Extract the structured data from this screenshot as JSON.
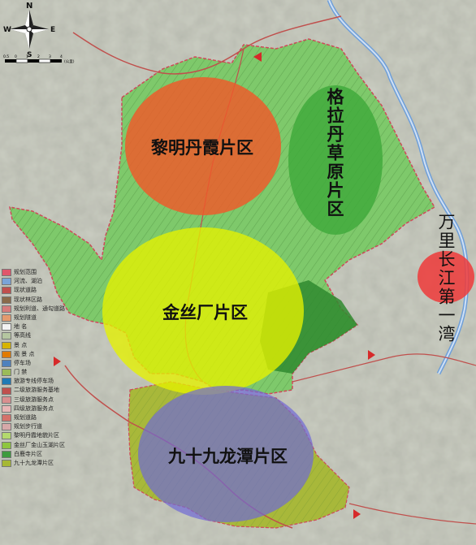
{
  "compass": {
    "north": "N",
    "south": "S",
    "east": "E",
    "west": "W"
  },
  "scale_bar": {
    "labels": [
      "0.5",
      "0",
      "1",
      "2",
      "3",
      "4"
    ],
    "unit": "(公里)"
  },
  "zones": {
    "liming": "黎明丹霞片区",
    "gela": "格拉丹草原片区",
    "jinsi": "金丝厂片区",
    "jiushijiu": "九十九龙潭片区",
    "wanli": "万里长江第一湾"
  },
  "legend": {
    "items": [
      {
        "label": "规划范围",
        "color": "#e0566b"
      },
      {
        "label": "河流、湖泊",
        "color": "#7aa4d8"
      },
      {
        "label": "现状道路",
        "color": "#c0504d"
      },
      {
        "label": "现状林区路",
        "color": "#8a6b4a"
      },
      {
        "label": "规划利道、通勾道路",
        "color": "#d67b7b"
      },
      {
        "label": "规划隧道",
        "color": "#e39a6e"
      },
      {
        "label": "地 名",
        "color": "#f2f2f2"
      },
      {
        "label": "等高线",
        "color": "#b5c6a0"
      },
      {
        "label": "景 点",
        "color": "#d6b400"
      },
      {
        "label": "观 景 点",
        "color": "#e07b00"
      },
      {
        "label": "停车场",
        "color": "#4f81bd"
      },
      {
        "label": "门 禁",
        "color": "#9bbb59"
      },
      {
        "label": "旅游专线停车场",
        "color": "#1f7ab5"
      },
      {
        "label": "二级旅游服务基地",
        "color": "#c0504d"
      },
      {
        "label": "三级旅游服务点",
        "color": "#d98f8f"
      },
      {
        "label": "四级旅游服务点",
        "color": "#e8b5b5"
      },
      {
        "label": "规划道路",
        "color": "#d4716a"
      },
      {
        "label": "规划步行道",
        "color": "#d6a8a8"
      },
      {
        "label": "黎明丹霞地貌片区",
        "color": "#b3d96d"
      },
      {
        "label": "金丝厂金山玉湖片区",
        "color": "#8ec63f"
      },
      {
        "label": "白鹿寺片区",
        "color": "#3e9b3e"
      },
      {
        "label": "九十九龙潭片区",
        "color": "#a6b833"
      }
    ]
  }
}
